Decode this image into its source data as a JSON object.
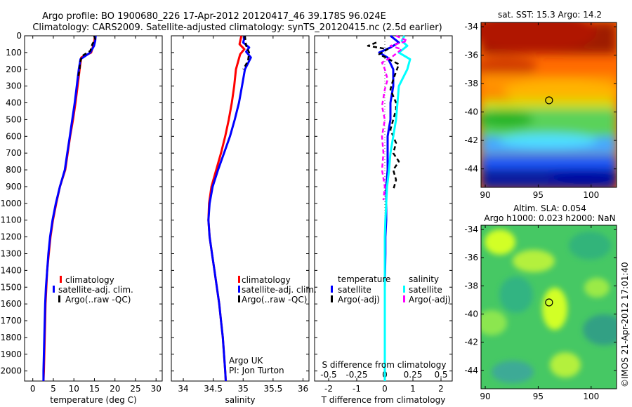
{
  "header": {
    "line1": "Argo profile: BO 1900680_226 17-Apr-2012 20120417_46 39.178S 96.024E",
    "line2": "Climatology: CARS2009. Satellite-adjusted climatology: synTS_20120415.nc (2.5d earlier)"
  },
  "chart_data": [
    {
      "type": "line",
      "id": "temperature",
      "xlabel": "temperature (deg C)",
      "ylabel": "",
      "xlim": [
        -2,
        31.5
      ],
      "ylim": [
        2060,
        0
      ],
      "xticks": [
        0,
        5,
        10,
        15,
        20,
        25,
        30
      ],
      "yticks": [
        0,
        100,
        200,
        300,
        400,
        500,
        600,
        700,
        800,
        900,
        1000,
        1100,
        1200,
        1300,
        1400,
        1500,
        1600,
        1700,
        1800,
        1900,
        2000
      ],
      "legend": [
        "climatology",
        "satellite-adj. clim.",
        "Argo(..raw -QC)"
      ],
      "series": [
        {
          "name": "climatology",
          "color": "#ff0000",
          "style": "solid",
          "points": [
            [
              15.1,
              0
            ],
            [
              15.0,
              30
            ],
            [
              14.7,
              60
            ],
            [
              14.2,
              100
            ],
            [
              11.8,
              130
            ],
            [
              11.4,
              200
            ],
            [
              10.9,
              300
            ],
            [
              10.4,
              400
            ],
            [
              9.8,
              500
            ],
            [
              9.1,
              600
            ],
            [
              8.5,
              700
            ],
            [
              7.9,
              800
            ],
            [
              6.6,
              900
            ],
            [
              5.7,
              1000
            ],
            [
              4.9,
              1100
            ],
            [
              4.3,
              1200
            ],
            [
              3.9,
              1300
            ],
            [
              3.5,
              1400
            ],
            [
              3.3,
              1500
            ],
            [
              3.1,
              1600
            ],
            [
              3.0,
              1700
            ],
            [
              2.9,
              1800
            ],
            [
              2.8,
              1900
            ],
            [
              2.7,
              2000
            ],
            [
              2.6,
              2060
            ]
          ]
        },
        {
          "name": "satellite-adj. clim.",
          "color": "#0000ff",
          "style": "solid",
          "points": [
            [
              15.3,
              0
            ],
            [
              15.2,
              30
            ],
            [
              14.9,
              60
            ],
            [
              14.0,
              100
            ],
            [
              11.6,
              140
            ],
            [
              11.2,
              200
            ],
            [
              10.7,
              300
            ],
            [
              10.2,
              400
            ],
            [
              9.6,
              500
            ],
            [
              9.0,
              600
            ],
            [
              8.4,
              700
            ],
            [
              7.8,
              800
            ],
            [
              6.6,
              900
            ],
            [
              5.6,
              1000
            ],
            [
              4.8,
              1100
            ],
            [
              4.2,
              1200
            ],
            [
              3.8,
              1300
            ],
            [
              3.5,
              1400
            ],
            [
              3.2,
              1500
            ],
            [
              3.0,
              1600
            ],
            [
              2.9,
              1700
            ],
            [
              2.8,
              1800
            ],
            [
              2.7,
              1900
            ],
            [
              2.6,
              2000
            ],
            [
              2.6,
              2060
            ]
          ]
        },
        {
          "name": "Argo(..raw -QC)",
          "color": "#000000",
          "style": "dashed",
          "points": [
            [
              14.9,
              0
            ],
            [
              15.2,
              20
            ],
            [
              14.5,
              50
            ],
            [
              14.0,
              90
            ],
            [
              12.0,
              120
            ],
            [
              11.5,
              160
            ],
            [
              11.4,
              200
            ],
            [
              11.0,
              250
            ]
          ]
        }
      ]
    },
    {
      "type": "line",
      "id": "salinity",
      "xlabel": "salinity",
      "xlim": [
        33.8,
        36.1
      ],
      "ylim": [
        2060,
        0
      ],
      "xticks": [
        34,
        34.5,
        35,
        35.5,
        36
      ],
      "legend": [
        "climatology",
        "satellite-adj. clim.",
        "Argo(..raw -QC)"
      ],
      "annotation": [
        "Argo UK",
        "PI: Jon Turton"
      ],
      "series": [
        {
          "name": "climatology",
          "color": "#ff0000",
          "style": "solid",
          "points": [
            [
              34.97,
              0
            ],
            [
              34.94,
              50
            ],
            [
              35.02,
              80
            ],
            [
              34.95,
              110
            ],
            [
              34.88,
              200
            ],
            [
              34.85,
              300
            ],
            [
              34.81,
              400
            ],
            [
              34.76,
              500
            ],
            [
              34.7,
              600
            ],
            [
              34.63,
              700
            ],
            [
              34.55,
              800
            ],
            [
              34.47,
              900
            ],
            [
              34.43,
              1000
            ],
            [
              34.42,
              1100
            ],
            [
              34.44,
              1200
            ],
            [
              34.48,
              1300
            ],
            [
              34.52,
              1400
            ],
            [
              34.56,
              1500
            ],
            [
              34.6,
              1600
            ],
            [
              34.63,
              1700
            ],
            [
              34.66,
              1800
            ],
            [
              34.68,
              1900
            ],
            [
              34.7,
              2000
            ],
            [
              34.71,
              2060
            ]
          ]
        },
        {
          "name": "satellite-adj. clim.",
          "color": "#0000ff",
          "style": "solid",
          "points": [
            [
              35.03,
              0
            ],
            [
              35.0,
              40
            ],
            [
              35.1,
              70
            ],
            [
              35.05,
              95
            ],
            [
              35.13,
              130
            ],
            [
              35.03,
              200
            ],
            [
              34.98,
              300
            ],
            [
              34.93,
              400
            ],
            [
              34.86,
              500
            ],
            [
              34.78,
              600
            ],
            [
              34.68,
              700
            ],
            [
              34.58,
              800
            ],
            [
              34.49,
              900
            ],
            [
              34.44,
              1000
            ],
            [
              34.42,
              1100
            ],
            [
              34.44,
              1200
            ],
            [
              34.48,
              1300
            ],
            [
              34.52,
              1400
            ],
            [
              34.56,
              1500
            ],
            [
              34.6,
              1600
            ],
            [
              34.63,
              1700
            ],
            [
              34.66,
              1800
            ],
            [
              34.68,
              1900
            ],
            [
              34.7,
              2000
            ],
            [
              34.71,
              2060
            ]
          ]
        },
        {
          "name": "Argo(..raw -QC)",
          "color": "#000000",
          "style": "dashed",
          "points": [
            [
              35.03,
              0
            ],
            [
              35.05,
              60
            ],
            [
              35.1,
              100
            ],
            [
              35.08,
              150
            ],
            [
              35.0,
              200
            ]
          ]
        }
      ]
    },
    {
      "type": "line",
      "id": "difference",
      "xlabel": "T difference from climatology",
      "xlabel_top": "S difference from climatology",
      "xlim": [
        -2.5,
        2.4
      ],
      "ylim": [
        2060,
        0
      ],
      "xticks": [
        -2,
        -1,
        0,
        1,
        2
      ],
      "xticklabels": [
        "-2",
        "-1",
        "0",
        "1",
        "2"
      ],
      "sticks": [
        -0.5,
        -0.25,
        0,
        0.25,
        0.5
      ],
      "sticklabels": [
        "-0.5",
        "-0.25",
        "0",
        "0.25",
        "0.5"
      ],
      "legend_titles": [
        "temperature",
        "salinity"
      ],
      "legend": [
        "satellite",
        "Argo(-adj)",
        "satellite",
        "Argo(-adj)"
      ],
      "series": [
        {
          "name": "temperature satellite",
          "color": "#0000ff",
          "style": "solid",
          "points": [
            [
              0.2,
              0
            ],
            [
              0.5,
              40
            ],
            [
              0.2,
              70
            ],
            [
              -0.2,
              100
            ],
            [
              0.1,
              130
            ],
            [
              0.3,
              200
            ],
            [
              0.3,
              300
            ],
            [
              0.2,
              400
            ],
            [
              0.2,
              500
            ],
            [
              0.1,
              600
            ],
            [
              0.1,
              700
            ],
            [
              0.1,
              800
            ],
            [
              0.05,
              900
            ],
            [
              0.05,
              1000
            ],
            [
              0.05,
              1100
            ],
            [
              0.02,
              1200
            ],
            [
              0.02,
              1300
            ],
            [
              0.0,
              1500
            ],
            [
              0.0,
              1700
            ],
            [
              0.0,
              2060
            ]
          ]
        },
        {
          "name": "temperature Argo(-adj)",
          "color": "#000000",
          "style": "dashed",
          "points": [
            [
              -0.3,
              40
            ],
            [
              -0.6,
              60
            ],
            [
              0.1,
              80
            ],
            [
              -0.2,
              110
            ],
            [
              0.5,
              170
            ],
            [
              0.3,
              260
            ],
            [
              0.2,
              320
            ],
            [
              0.4,
              400
            ],
            [
              0.4,
              440
            ],
            [
              0.3,
              500
            ],
            [
              0.2,
              560
            ],
            [
              0.3,
              600
            ],
            [
              0.4,
              640
            ],
            [
              0.3,
              700
            ],
            [
              0.5,
              750
            ],
            [
              0.3,
              800
            ],
            [
              0.4,
              860
            ],
            [
              0.3,
              920
            ]
          ]
        },
        {
          "name": "salinity satellite",
          "color": "#00ffff",
          "style": "solid",
          "points": [
            [
              0.7,
              0
            ],
            [
              0.6,
              30
            ],
            [
              0.8,
              60
            ],
            [
              0.5,
              100
            ],
            [
              0.9,
              140
            ],
            [
              0.8,
              200
            ],
            [
              0.5,
              300
            ],
            [
              0.45,
              400
            ],
            [
              0.4,
              500
            ],
            [
              0.3,
              600
            ],
            [
              0.2,
              700
            ],
            [
              0.15,
              800
            ],
            [
              0.08,
              900
            ],
            [
              0.05,
              1000
            ],
            [
              0.02,
              1100
            ],
            [
              0.0,
              1200
            ],
            [
              0.0,
              2060
            ]
          ]
        },
        {
          "name": "salinity Argo(-adj)",
          "color": "#ff00ff",
          "style": "dashed",
          "points": [
            [
              0.4,
              0
            ],
            [
              0.8,
              30
            ],
            [
              0.2,
              60
            ],
            [
              0.6,
              80
            ],
            [
              0.3,
              120
            ],
            [
              -0.1,
              160
            ],
            [
              0.0,
              200
            ],
            [
              0.1,
              260
            ],
            [
              0.0,
              320
            ],
            [
              -0.1,
              420
            ],
            [
              0.0,
              500
            ],
            [
              -0.1,
              600
            ],
            [
              -0.05,
              700
            ],
            [
              -0.1,
              800
            ],
            [
              0.0,
              900
            ],
            [
              -0.05,
              980
            ]
          ]
        }
      ]
    },
    {
      "type": "heatmap",
      "id": "sst_map",
      "title": "sat. SST: 15.3 Argo: 14.2",
      "xlim": [
        89.6,
        102.4
      ],
      "ylim": [
        -45.3,
        -33.7
      ],
      "xticks": [
        90,
        95,
        100
      ],
      "yticks": [
        -34,
        -36,
        -38,
        -40,
        -42,
        -44
      ],
      "marker": {
        "lon": 96.024,
        "lat": -39.178
      }
    },
    {
      "type": "heatmap",
      "id": "sla_map",
      "title_lines": [
        "Altim. SLA: 0.054",
        "Argo h1000: 0.023 h2000: NaN"
      ],
      "xlim": [
        89.6,
        102.4
      ],
      "ylim": [
        -45.3,
        -33.7
      ],
      "xticks": [
        90,
        95,
        100
      ],
      "yticks": [
        -34,
        -36,
        -38,
        -40,
        -42,
        -44
      ],
      "marker": {
        "lon": 96.024,
        "lat": -39.178
      }
    }
  ],
  "side_text": "©IMOS 21-Apr-2012 17:01:40"
}
